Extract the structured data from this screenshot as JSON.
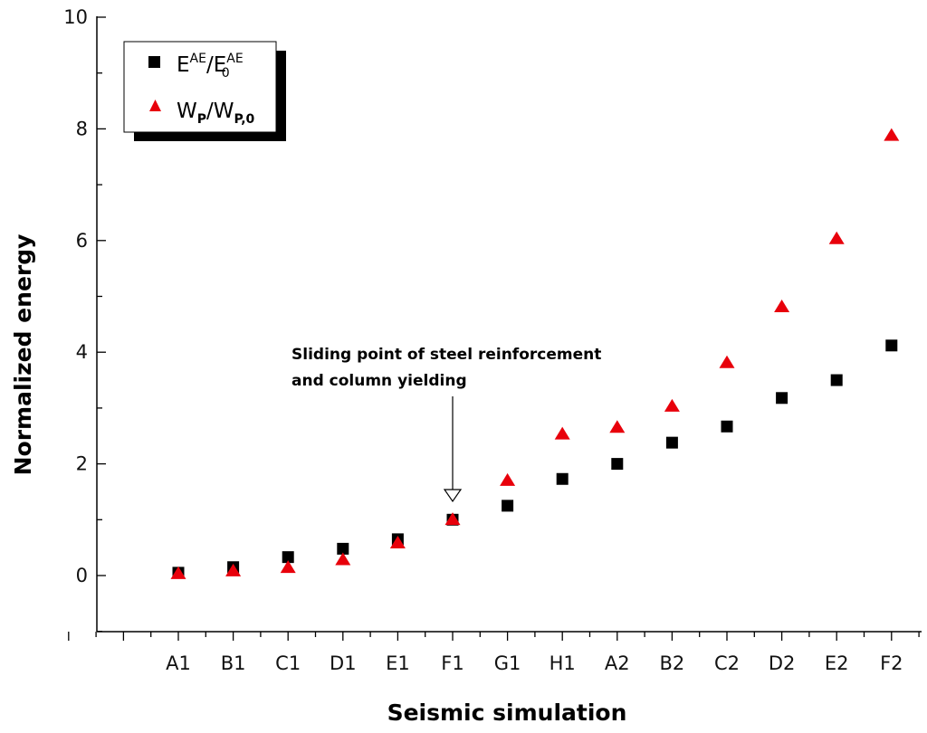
{
  "chart_data": {
    "type": "scatter",
    "xlabel": "Seismic simulation",
    "ylabel": "Normalized energy",
    "categories": [
      "A1",
      "B1",
      "C1",
      "D1",
      "E1",
      "F1",
      "G1",
      "H1",
      "A2",
      "B2",
      "C2",
      "D2",
      "E2",
      "F2"
    ],
    "ylim": [
      -1,
      10
    ],
    "yticks": [
      0,
      2,
      4,
      6,
      8,
      10
    ],
    "grid": false,
    "legend_position": "top-left",
    "series": [
      {
        "name": "E^AE/E_0^AE",
        "legend": {
          "base1": "E",
          "sup1": "AE",
          "sep": "/",
          "base2": "E",
          "sub2": "0",
          "sup2": "AE"
        },
        "marker": "square",
        "color": "#000000",
        "values": [
          0.05,
          0.15,
          0.33,
          0.48,
          0.65,
          1.0,
          1.25,
          1.73,
          2.0,
          2.38,
          2.67,
          3.18,
          3.5,
          4.12
        ]
      },
      {
        "name": "W_P/W_P,0",
        "legend": {
          "base1": "W",
          "sub1": "P",
          "sep": "/",
          "base2": "W",
          "sub2": "P,0"
        },
        "marker": "triangle",
        "color": "#e8000b",
        "values": [
          0.05,
          0.1,
          0.16,
          0.3,
          0.6,
          1.02,
          1.72,
          2.55,
          2.67,
          3.05,
          3.83,
          4.83,
          6.05,
          7.9
        ]
      }
    ],
    "annotation": {
      "lines": [
        "Sliding point of steel reinforcement",
        "and column yielding"
      ],
      "target_category": "F1"
    }
  }
}
